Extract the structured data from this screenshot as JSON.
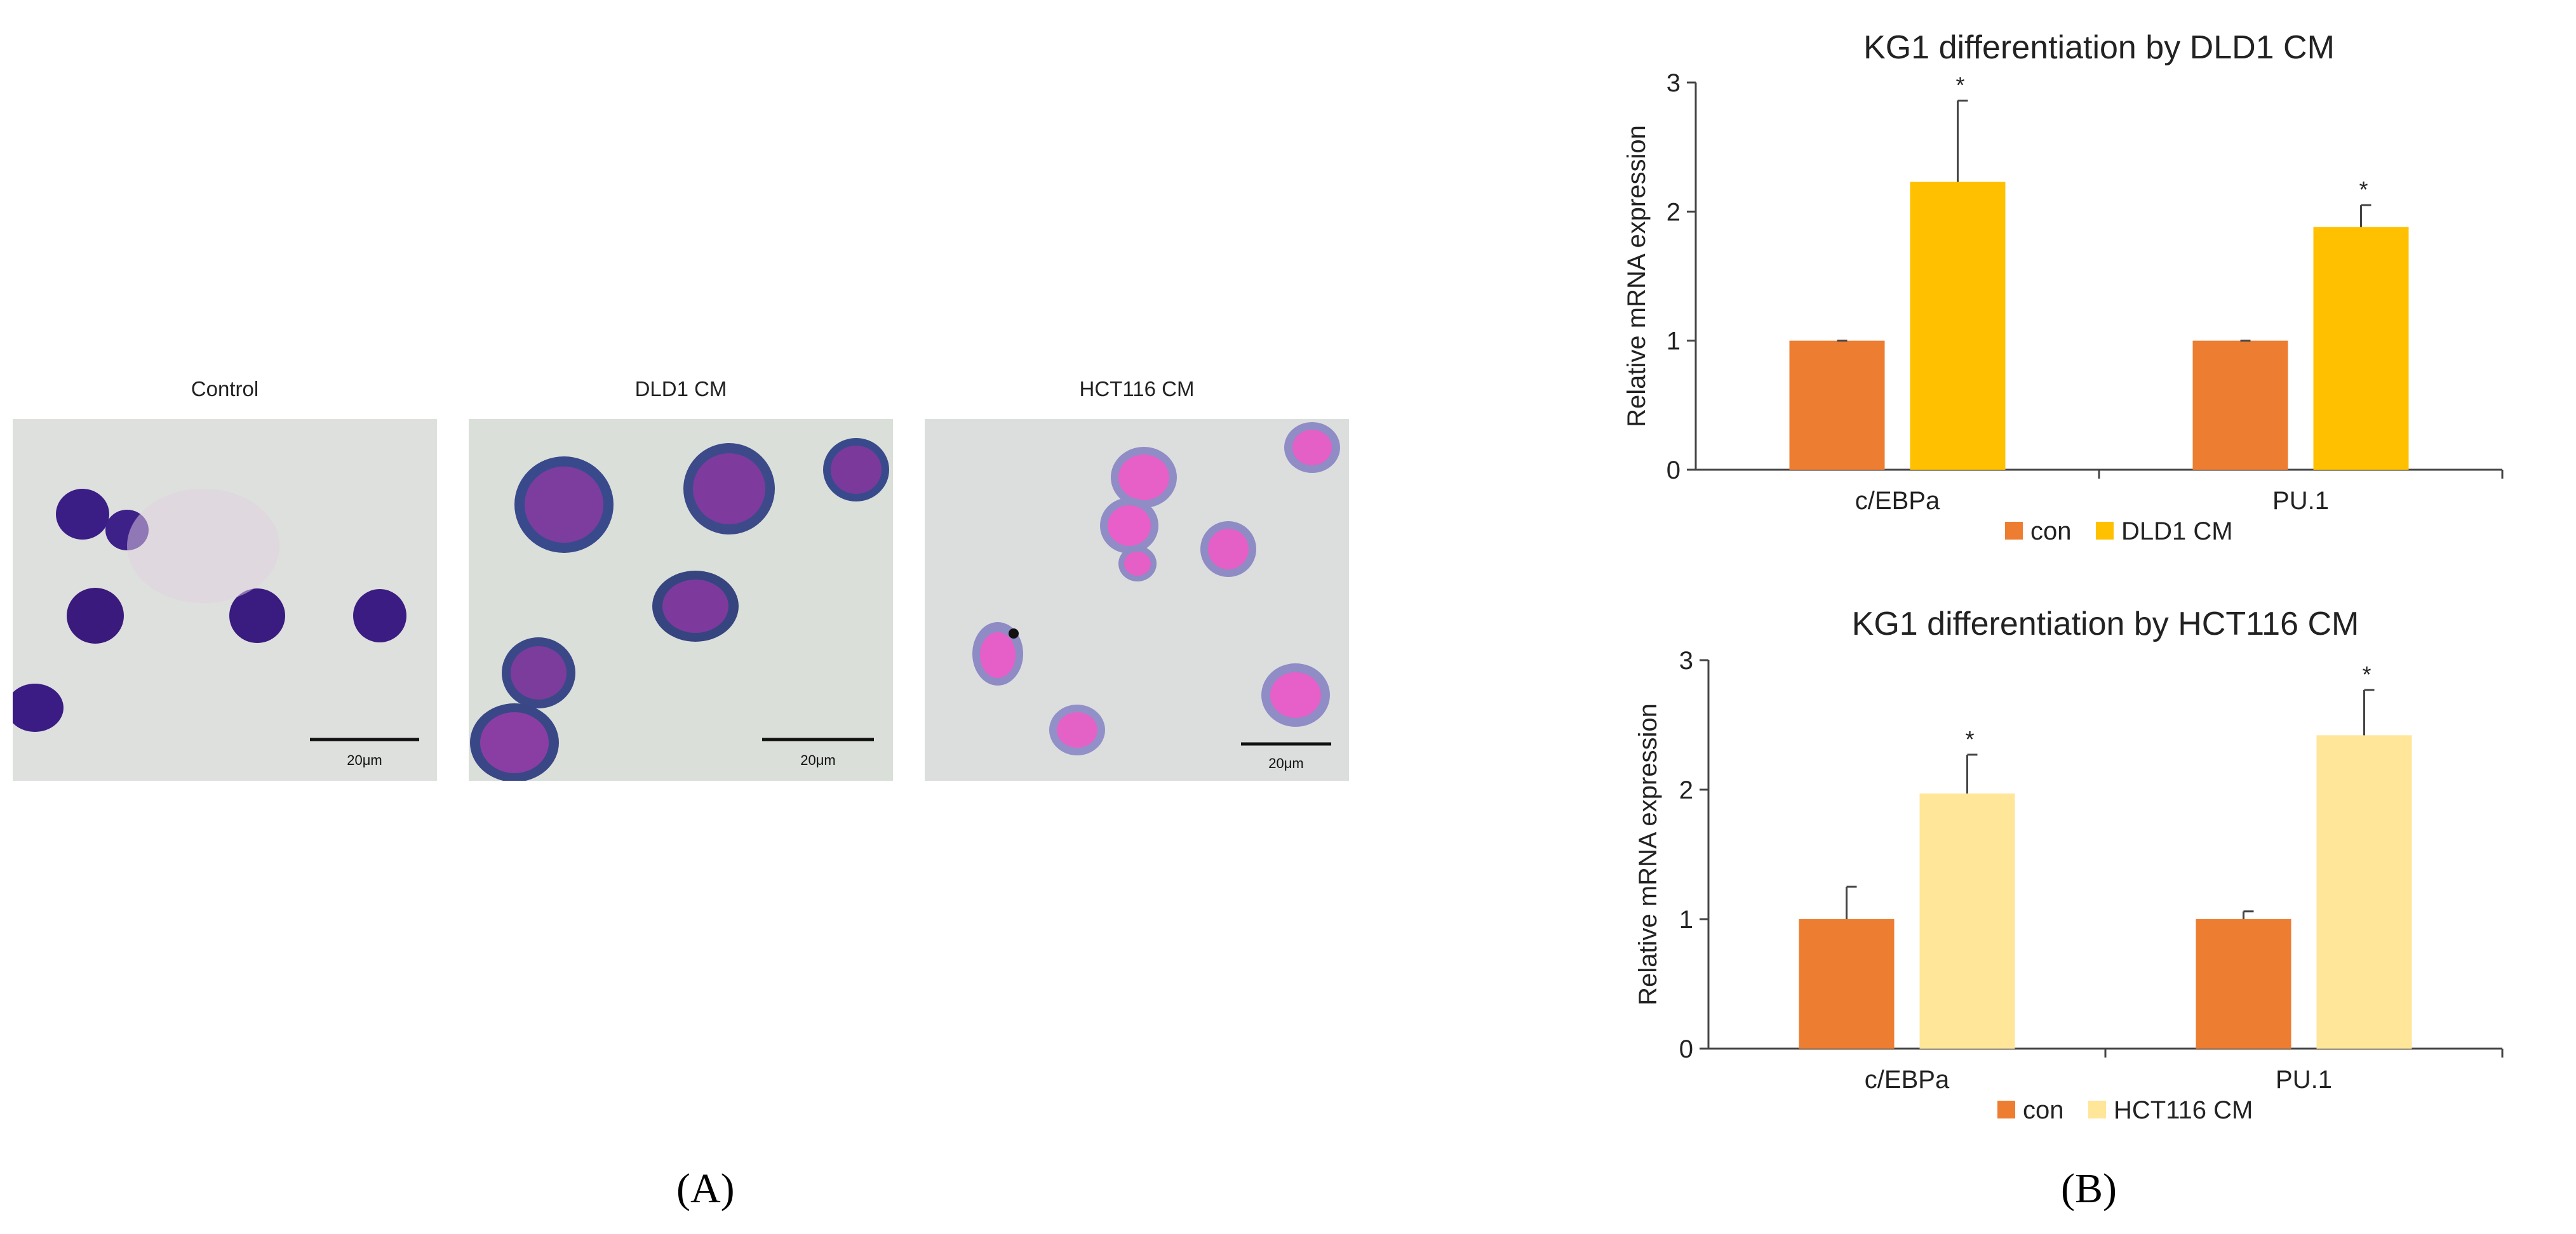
{
  "panel_a": {
    "label": "(A)",
    "micrographs": [
      {
        "title": "Control",
        "scale_bar": "20μm",
        "stain": "purple"
      },
      {
        "title": "DLD1 CM",
        "scale_bar": "20μm",
        "stain": "violet"
      },
      {
        "title": "HCT116 CM",
        "scale_bar": "20μm",
        "stain": "pink"
      }
    ]
  },
  "panel_b": {
    "label": "(B)"
  },
  "chart_data": [
    {
      "type": "bar",
      "title": "KG1 differentiation by DLD1 CM",
      "xlabel": "",
      "ylabel": "Relative mRNA expression",
      "categories": [
        "c/EBPa",
        "PU.1"
      ],
      "ylim": [
        0,
        3
      ],
      "yticks": [
        0,
        1,
        2,
        3
      ],
      "series": [
        {
          "name": "con",
          "color": "#ed7d31",
          "values": [
            1.0,
            1.0
          ],
          "errors": [
            0.0,
            0.0
          ]
        },
        {
          "name": "DLD1 CM",
          "color": "#ffc000",
          "values": [
            2.23,
            1.88
          ],
          "errors": [
            0.63,
            0.17
          ]
        }
      ],
      "significance": [
        {
          "series": 1,
          "category": 0,
          "mark": "*"
        },
        {
          "series": 1,
          "category": 1,
          "mark": "*"
        }
      ],
      "legend": "bottom",
      "grid": false
    },
    {
      "type": "bar",
      "title": "KG1 differentiation by HCT116 CM",
      "xlabel": "",
      "ylabel": "Relative mRNA expression",
      "categories": [
        "c/EBPa",
        "PU.1"
      ],
      "ylim": [
        0,
        3
      ],
      "yticks": [
        0,
        1,
        2,
        3
      ],
      "series": [
        {
          "name": "con",
          "color": "#ed7d31",
          "values": [
            1.0,
            1.0
          ],
          "errors": [
            0.25,
            0.06
          ]
        },
        {
          "name": "HCT116 CM",
          "color": "#ffe699",
          "values": [
            1.97,
            2.42
          ],
          "errors": [
            0.3,
            0.35
          ]
        }
      ],
      "significance": [
        {
          "series": 1,
          "category": 0,
          "mark": "*"
        },
        {
          "series": 1,
          "category": 1,
          "mark": "*"
        }
      ],
      "legend": "bottom",
      "grid": false
    }
  ]
}
